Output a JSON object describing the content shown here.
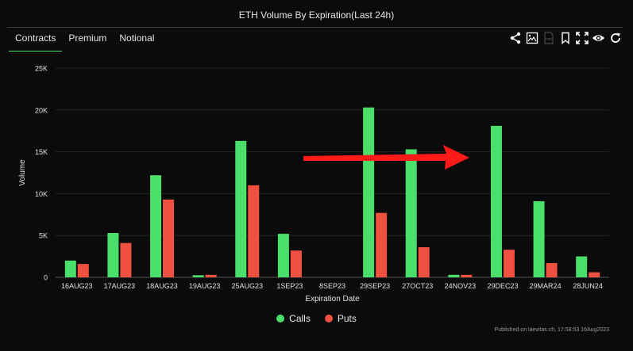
{
  "title": "ETH Volume By Expiration(Last 24h)",
  "tabs": [
    {
      "label": "Contracts",
      "active": true
    },
    {
      "label": "Premium",
      "active": false
    },
    {
      "label": "Notional",
      "active": false
    }
  ],
  "toolbar": {
    "icons": [
      "share-icon",
      "image-download-icon",
      "csv-download-icon",
      "bookmark-icon",
      "fullscreen-icon",
      "eye-icon",
      "refresh-icon"
    ],
    "csv_label": "CSV"
  },
  "colors": {
    "calls": "#4ade6b",
    "puts": "#f0503f",
    "arrow": "#ff1a1a"
  },
  "chart_data": {
    "type": "bar",
    "title": "ETH Volume By Expiration(Last 24h)",
    "xlabel": "Expiration Date",
    "ylabel": "Volume",
    "ylim": [
      0,
      25000
    ],
    "yticks": [
      0,
      5000,
      10000,
      15000,
      20000,
      25000
    ],
    "ytick_labels": [
      "0",
      "5K",
      "10K",
      "15K",
      "20K",
      "25K"
    ],
    "grid": true,
    "legend_position": "bottom-center",
    "categories": [
      "16AUG23",
      "17AUG23",
      "18AUG23",
      "19AUG23",
      "25AUG23",
      "1SEP23",
      "8SEP23",
      "29SEP23",
      "27OCT23",
      "24NOV23",
      "29DEC23",
      "29MAR24",
      "28JUN24"
    ],
    "series": [
      {
        "name": "Calls",
        "values": [
          2000,
          5300,
          12200,
          250,
          16300,
          5200,
          0,
          20300,
          15300,
          300,
          18100,
          9100,
          2500
        ]
      },
      {
        "name": "Puts",
        "values": [
          1600,
          4100,
          9300,
          300,
          11000,
          3200,
          0,
          7700,
          3600,
          300,
          3300,
          1700,
          600
        ]
      }
    ]
  },
  "footer": {
    "published": "Published on laevitas.ch, 17:58:53 16Aug2023"
  }
}
